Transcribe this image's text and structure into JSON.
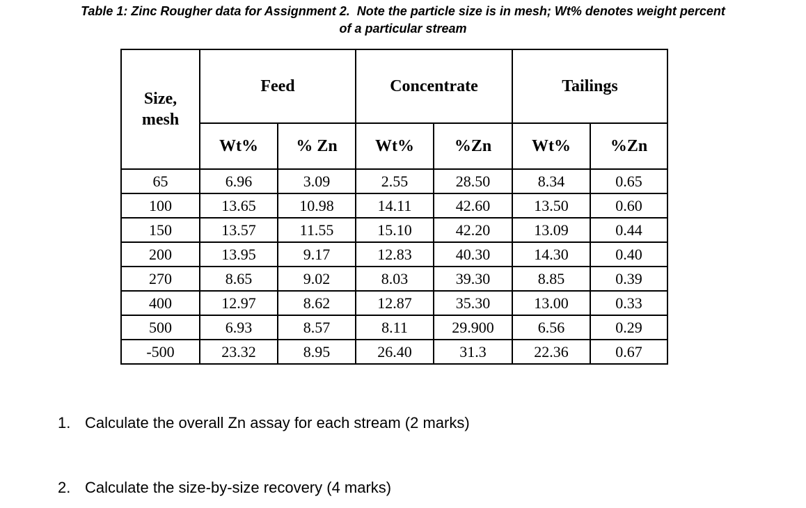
{
  "title": {
    "line1": "Table 1: Zinc Rougher data for Assignment 2.  Note the particle size is in mesh; Wt% denotes weight percent",
    "line2": "of a particular stream"
  },
  "table": {
    "corner_header": {
      "line1": "Size,",
      "line2": "mesh"
    },
    "group_headers": [
      "Feed",
      "Concentrate",
      "Tailings"
    ],
    "sub_headers": [
      "Wt%",
      "% Zn",
      "Wt%",
      "%Zn",
      "Wt%",
      "%Zn"
    ],
    "rows": [
      [
        "65",
        "6.96",
        "3.09",
        "2.55",
        "28.50",
        "8.34",
        "0.65"
      ],
      [
        "100",
        "13.65",
        "10.98",
        "14.11",
        "42.60",
        "13.50",
        "0.60"
      ],
      [
        "150",
        "13.57",
        "11.55",
        "15.10",
        "42.20",
        "13.09",
        "0.44"
      ],
      [
        "200",
        "13.95",
        "9.17",
        "12.83",
        "40.30",
        "14.30",
        "0.40"
      ],
      [
        "270",
        "8.65",
        "9.02",
        "8.03",
        "39.30",
        "8.85",
        "0.39"
      ],
      [
        "400",
        "12.97",
        "8.62",
        "12.87",
        "35.30",
        "13.00",
        "0.33"
      ],
      [
        "500",
        "6.93",
        "8.57",
        "8.11",
        "29.900",
        "6.56",
        "0.29"
      ],
      [
        "-500",
        "23.32",
        "8.95",
        "26.40",
        "31.3",
        "22.36",
        "0.67"
      ]
    ]
  },
  "questions": [
    {
      "number": "1.",
      "text": "Calculate the overall Zn assay for each stream (2 marks)"
    },
    {
      "number": "2.",
      "text": "Calculate the size-by-size recovery (4 marks)"
    }
  ],
  "colors": {
    "background": "#ffffff",
    "text": "#000000",
    "table_border": "#000000"
  }
}
